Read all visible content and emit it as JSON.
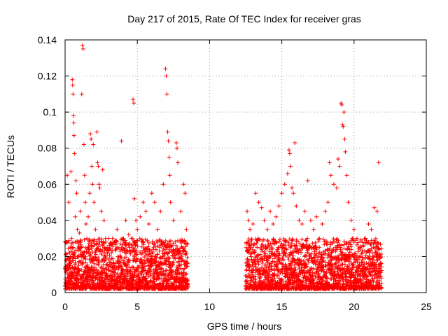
{
  "chart_data": {
    "type": "scatter",
    "title": "Day 217 of 2015, Rate Of TEC Index for receiver gras",
    "xlabel": "GPS time / hours",
    "ylabel": "ROTI / TECUs",
    "xlim": [
      0,
      25
    ],
    "ylim": [
      0,
      0.14
    ],
    "xticks": [
      0,
      5,
      10,
      15,
      20,
      25
    ],
    "yticks": [
      0,
      0.02,
      0.04,
      0.06,
      0.08,
      0.1,
      0.12,
      0.14
    ],
    "xtick_labels": [
      "0",
      "5",
      "10",
      "15",
      "20",
      "25"
    ],
    "ytick_labels": [
      "0",
      "0.02",
      "0.04",
      "0.06",
      "0.08",
      "0.1",
      "0.12",
      "0.14"
    ],
    "grid": true,
    "marker_color": "#ff0000",
    "marker": "plus",
    "series": [
      {
        "points": [
          [
            0.05,
            0.012
          ],
          [
            0.1,
            0.018
          ],
          [
            0.15,
            0.065
          ],
          [
            0.2,
            0.01
          ],
          [
            0.25,
            0.05
          ],
          [
            0.3,
            0.022
          ],
          [
            0.35,
            0.016
          ],
          [
            0.4,
            0.067
          ],
          [
            0.45,
            0.03
          ],
          [
            0.5,
            0.118
          ],
          [
            0.52,
            0.115
          ],
          [
            0.55,
            0.11
          ],
          [
            0.58,
            0.098
          ],
          [
            0.6,
            0.094
          ],
          [
            0.62,
            0.087
          ],
          [
            0.65,
            0.077
          ],
          [
            0.7,
            0.042
          ],
          [
            0.75,
            0.062
          ],
          [
            0.8,
            0.055
          ],
          [
            0.85,
            0.035
          ],
          [
            0.9,
            0.028
          ],
          [
            0.95,
            0.02
          ],
          [
            1.0,
            0.033
          ],
          [
            1.05,
            0.045
          ],
          [
            1.1,
            0.025
          ],
          [
            1.15,
            0.11
          ],
          [
            1.2,
            0.137
          ],
          [
            1.25,
            0.135
          ],
          [
            1.3,
            0.082
          ],
          [
            1.35,
            0.065
          ],
          [
            1.4,
            0.05
          ],
          [
            1.45,
            0.038
          ],
          [
            1.5,
            0.03
          ],
          [
            1.6,
            0.042
          ],
          [
            1.7,
            0.055
          ],
          [
            1.75,
            0.088
          ],
          [
            1.8,
            0.085
          ],
          [
            1.85,
            0.07
          ],
          [
            1.9,
            0.06
          ],
          [
            1.95,
            0.082
          ],
          [
            2.0,
            0.05
          ],
          [
            2.1,
            0.035
          ],
          [
            2.2,
            0.089
          ],
          [
            2.25,
            0.072
          ],
          [
            2.3,
            0.07
          ],
          [
            2.35,
            0.06
          ],
          [
            2.4,
            0.058
          ],
          [
            2.5,
            0.045
          ],
          [
            2.6,
            0.068
          ],
          [
            2.7,
            0.04
          ],
          [
            2.8,
            0.03
          ],
          [
            2.9,
            0.025
          ],
          [
            3.0,
            0.03
          ],
          [
            3.2,
            0.022
          ],
          [
            3.4,
            0.028
          ],
          [
            3.6,
            0.035
          ],
          [
            3.8,
            0.02
          ],
          [
            3.9,
            0.084
          ],
          [
            4.0,
            0.03
          ],
          [
            4.2,
            0.04
          ],
          [
            4.4,
            0.032
          ],
          [
            4.6,
            0.026
          ],
          [
            4.7,
            0.107
          ],
          [
            4.75,
            0.105
          ],
          [
            4.8,
            0.052
          ],
          [
            4.9,
            0.04
          ],
          [
            5.0,
            0.035
          ],
          [
            5.2,
            0.042
          ],
          [
            5.4,
            0.05
          ],
          [
            5.6,
            0.045
          ],
          [
            5.8,
            0.038
          ],
          [
            6.0,
            0.055
          ],
          [
            6.2,
            0.05
          ],
          [
            6.4,
            0.035
          ],
          [
            6.6,
            0.045
          ],
          [
            6.8,
            0.06
          ],
          [
            6.95,
            0.124
          ],
          [
            7.0,
            0.12
          ],
          [
            7.05,
            0.11
          ],
          [
            7.1,
            0.089
          ],
          [
            7.15,
            0.084
          ],
          [
            7.2,
            0.075
          ],
          [
            7.25,
            0.065
          ],
          [
            7.3,
            0.05
          ],
          [
            7.5,
            0.04
          ],
          [
            7.7,
            0.083
          ],
          [
            7.75,
            0.08
          ],
          [
            7.8,
            0.072
          ],
          [
            8.0,
            0.045
          ],
          [
            8.2,
            0.06
          ],
          [
            8.3,
            0.055
          ],
          [
            8.4,
            0.035
          ],
          [
            12.6,
            0.045
          ],
          [
            12.7,
            0.04
          ],
          [
            12.8,
            0.035
          ],
          [
            13.0,
            0.038
          ],
          [
            13.2,
            0.055
          ],
          [
            13.4,
            0.05
          ],
          [
            13.6,
            0.047
          ],
          [
            13.8,
            0.04
          ],
          [
            14.0,
            0.035
          ],
          [
            14.2,
            0.045
          ],
          [
            14.4,
            0.038
          ],
          [
            14.6,
            0.042
          ],
          [
            14.8,
            0.048
          ],
          [
            15.0,
            0.055
          ],
          [
            15.2,
            0.06
          ],
          [
            15.4,
            0.066
          ],
          [
            15.5,
            0.079
          ],
          [
            15.55,
            0.077
          ],
          [
            15.6,
            0.07
          ],
          [
            15.7,
            0.058
          ],
          [
            15.8,
            0.055
          ],
          [
            15.9,
            0.083
          ],
          [
            16.0,
            0.048
          ],
          [
            16.2,
            0.04
          ],
          [
            16.4,
            0.038
          ],
          [
            16.6,
            0.045
          ],
          [
            16.8,
            0.062
          ],
          [
            17.0,
            0.04
          ],
          [
            17.2,
            0.035
          ],
          [
            17.4,
            0.042
          ],
          [
            17.6,
            0.03
          ],
          [
            17.8,
            0.038
          ],
          [
            18.0,
            0.045
          ],
          [
            18.2,
            0.05
          ],
          [
            18.3,
            0.072
          ],
          [
            18.4,
            0.065
          ],
          [
            18.6,
            0.06
          ],
          [
            18.8,
            0.058
          ],
          [
            18.9,
            0.074
          ],
          [
            19.0,
            0.07
          ],
          [
            19.1,
            0.105
          ],
          [
            19.15,
            0.104
          ],
          [
            19.2,
            0.093
          ],
          [
            19.25,
            0.092
          ],
          [
            19.3,
            0.1
          ],
          [
            19.35,
            0.085
          ],
          [
            19.4,
            0.078
          ],
          [
            19.5,
            0.065
          ],
          [
            19.6,
            0.05
          ],
          [
            19.8,
            0.04
          ],
          [
            20.0,
            0.035
          ],
          [
            20.2,
            0.03
          ],
          [
            20.4,
            0.025
          ],
          [
            20.6,
            0.022
          ],
          [
            20.8,
            0.03
          ],
          [
            21.0,
            0.038
          ],
          [
            21.2,
            0.035
          ],
          [
            21.4,
            0.047
          ],
          [
            21.6,
            0.045
          ],
          [
            21.7,
            0.072
          ]
        ]
      }
    ],
    "dense_bands": [
      {
        "x_start": 0.0,
        "x_end": 8.5,
        "y_min": 0.002,
        "y_max": 0.03
      },
      {
        "x_start": 12.5,
        "x_end": 21.9,
        "y_min": 0.002,
        "y_max": 0.03
      }
    ]
  }
}
